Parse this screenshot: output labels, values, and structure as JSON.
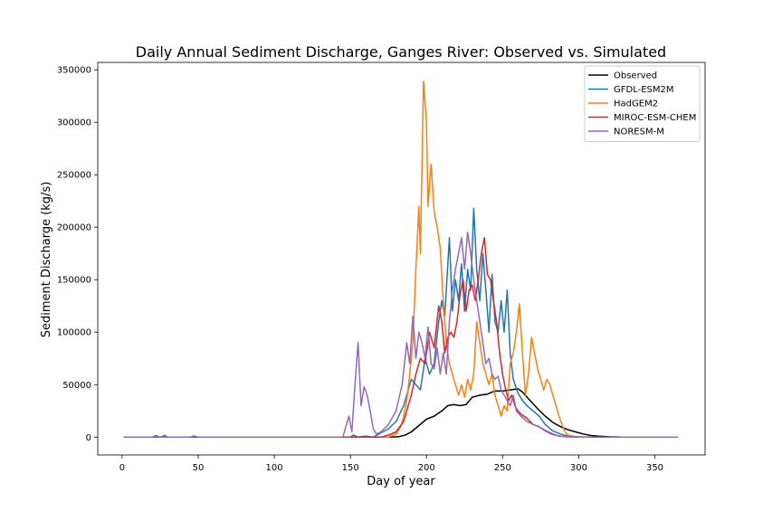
{
  "chart_data": {
    "type": "line",
    "title": "Daily Annual Sediment Discharge, Ganges River: Observed vs. Simulated",
    "xlabel": "Day of year",
    "ylabel": "Sediment Discharge (kg/s)",
    "xlim": [
      -16,
      383
    ],
    "ylim": [
      -17000,
      357000
    ],
    "xticks": [
      0,
      50,
      100,
      150,
      200,
      250,
      300,
      350
    ],
    "yticks": [
      0,
      50000,
      100000,
      150000,
      200000,
      250000,
      300000,
      350000
    ],
    "grid": false,
    "legend_position": "top-right",
    "series": [
      {
        "name": "Observed",
        "color": "#000000",
        "points": [
          [
            1,
            0
          ],
          [
            175,
            0
          ],
          [
            182,
            500
          ],
          [
            186,
            2000
          ],
          [
            190,
            5000
          ],
          [
            195,
            11000
          ],
          [
            200,
            17000
          ],
          [
            205,
            20000
          ],
          [
            210,
            25000
          ],
          [
            214,
            30000
          ],
          [
            218,
            31000
          ],
          [
            222,
            30000
          ],
          [
            226,
            31000
          ],
          [
            230,
            38000
          ],
          [
            235,
            40000
          ],
          [
            240,
            41000
          ],
          [
            245,
            44000
          ],
          [
            250,
            44000
          ],
          [
            255,
            45000
          ],
          [
            260,
            46000
          ],
          [
            263,
            43000
          ],
          [
            268,
            35000
          ],
          [
            273,
            27000
          ],
          [
            278,
            20000
          ],
          [
            283,
            14000
          ],
          [
            288,
            10000
          ],
          [
            293,
            7000
          ],
          [
            298,
            5000
          ],
          [
            303,
            3000
          ],
          [
            308,
            1500
          ],
          [
            313,
            800
          ],
          [
            320,
            300
          ],
          [
            330,
            100
          ],
          [
            365,
            0
          ]
        ]
      },
      {
        "name": "GFDL-ESM2M",
        "color": "#1f77b4",
        "points": [
          [
            1,
            0
          ],
          [
            20,
            0
          ],
          [
            22,
            1500
          ],
          [
            25,
            0
          ],
          [
            28,
            1500
          ],
          [
            30,
            0
          ],
          [
            45,
            0
          ],
          [
            47,
            800
          ],
          [
            50,
            0
          ],
          [
            150,
            0
          ],
          [
            152,
            2000
          ],
          [
            155,
            0
          ],
          [
            160,
            1000
          ],
          [
            165,
            0
          ],
          [
            170,
            4000
          ],
          [
            175,
            8000
          ],
          [
            180,
            15000
          ],
          [
            185,
            30000
          ],
          [
            190,
            55000
          ],
          [
            193,
            50000
          ],
          [
            196,
            45000
          ],
          [
            199,
            75000
          ],
          [
            202,
            60000
          ],
          [
            205,
            70000
          ],
          [
            208,
            110000
          ],
          [
            210,
            130000
          ],
          [
            212,
            115000
          ],
          [
            215,
            190000
          ],
          [
            217,
            120000
          ],
          [
            219,
            150000
          ],
          [
            221,
            130000
          ],
          [
            223,
            165000
          ],
          [
            225,
            120000
          ],
          [
            227,
            160000
          ],
          [
            229,
            140000
          ],
          [
            231,
            218000
          ],
          [
            233,
            160000
          ],
          [
            235,
            130000
          ],
          [
            237,
            175000
          ],
          [
            239,
            140000
          ],
          [
            241,
            100000
          ],
          [
            243,
            155000
          ],
          [
            245,
            110000
          ],
          [
            247,
            100000
          ],
          [
            249,
            130000
          ],
          [
            251,
            100000
          ],
          [
            253,
            140000
          ],
          [
            255,
            80000
          ],
          [
            257,
            55000
          ],
          [
            260,
            42000
          ],
          [
            263,
            35000
          ],
          [
            266,
            30000
          ],
          [
            270,
            25000
          ],
          [
            274,
            20000
          ],
          [
            278,
            12000
          ],
          [
            283,
            6000
          ],
          [
            288,
            3000
          ],
          [
            293,
            1000
          ],
          [
            300,
            200
          ],
          [
            310,
            0
          ],
          [
            365,
            0
          ]
        ]
      },
      {
        "name": "HadGEM2",
        "color": "#ff7f0e",
        "points": [
          [
            1,
            0
          ],
          [
            175,
            0
          ],
          [
            180,
            3000
          ],
          [
            183,
            10000
          ],
          [
            185,
            20000
          ],
          [
            187,
            35000
          ],
          [
            189,
            60000
          ],
          [
            191,
            90000
          ],
          [
            193,
            160000
          ],
          [
            195,
            220000
          ],
          [
            196,
            175000
          ],
          [
            198,
            339000
          ],
          [
            200,
            300000
          ],
          [
            201,
            220000
          ],
          [
            203,
            260000
          ],
          [
            205,
            215000
          ],
          [
            207,
            200000
          ],
          [
            209,
            180000
          ],
          [
            211,
            130000
          ],
          [
            213,
            90000
          ],
          [
            215,
            70000
          ],
          [
            217,
            60000
          ],
          [
            219,
            50000
          ],
          [
            221,
            40000
          ],
          [
            223,
            50000
          ],
          [
            225,
            38000
          ],
          [
            227,
            55000
          ],
          [
            229,
            45000
          ],
          [
            231,
            60000
          ],
          [
            233,
            110000
          ],
          [
            235,
            90000
          ],
          [
            237,
            70000
          ],
          [
            239,
            60000
          ],
          [
            241,
            50000
          ],
          [
            243,
            60000
          ],
          [
            245,
            40000
          ],
          [
            247,
            30000
          ],
          [
            249,
            20000
          ],
          [
            251,
            30000
          ],
          [
            253,
            25000
          ],
          [
            255,
            70000
          ],
          [
            257,
            80000
          ],
          [
            259,
            100000
          ],
          [
            261,
            127000
          ],
          [
            263,
            80000
          ],
          [
            265,
            40000
          ],
          [
            267,
            60000
          ],
          [
            269,
            95000
          ],
          [
            271,
            80000
          ],
          [
            273,
            65000
          ],
          [
            275,
            55000
          ],
          [
            277,
            45000
          ],
          [
            279,
            55000
          ],
          [
            281,
            50000
          ],
          [
            283,
            40000
          ],
          [
            285,
            30000
          ],
          [
            287,
            20000
          ],
          [
            289,
            12000
          ],
          [
            291,
            5000
          ],
          [
            293,
            2000
          ],
          [
            298,
            500
          ],
          [
            305,
            0
          ],
          [
            365,
            0
          ]
        ]
      },
      {
        "name": "MIROC-ESM-CHEM",
        "color": "#d62728",
        "points": [
          [
            1,
            0
          ],
          [
            170,
            0
          ],
          [
            175,
            2000
          ],
          [
            180,
            5000
          ],
          [
            185,
            15000
          ],
          [
            190,
            40000
          ],
          [
            193,
            60000
          ],
          [
            196,
            75000
          ],
          [
            199,
            70000
          ],
          [
            202,
            100000
          ],
          [
            205,
            85000
          ],
          [
            208,
            125000
          ],
          [
            210,
            110000
          ],
          [
            212,
            80000
          ],
          [
            214,
            95000
          ],
          [
            216,
            100000
          ],
          [
            218,
            95000
          ],
          [
            220,
            110000
          ],
          [
            222,
            135000
          ],
          [
            224,
            150000
          ],
          [
            226,
            120000
          ],
          [
            228,
            140000
          ],
          [
            230,
            145000
          ],
          [
            232,
            130000
          ],
          [
            234,
            150000
          ],
          [
            236,
            175000
          ],
          [
            238,
            190000
          ],
          [
            240,
            155000
          ],
          [
            242,
            150000
          ],
          [
            244,
            130000
          ],
          [
            246,
            110000
          ],
          [
            248,
            80000
          ],
          [
            250,
            60000
          ],
          [
            252,
            45000
          ],
          [
            254,
            35000
          ],
          [
            256,
            40000
          ],
          [
            258,
            30000
          ],
          [
            260,
            25000
          ],
          [
            262,
            22000
          ],
          [
            264,
            20000
          ],
          [
            266,
            18000
          ],
          [
            268,
            15000
          ],
          [
            270,
            12000
          ],
          [
            274,
            10000
          ],
          [
            278,
            6000
          ],
          [
            282,
            3000
          ],
          [
            287,
            1000
          ],
          [
            292,
            300
          ],
          [
            300,
            0
          ],
          [
            365,
            0
          ]
        ]
      },
      {
        "name": "NORESM-M",
        "color": "#9467bd",
        "points": [
          [
            1,
            0
          ],
          [
            20,
            0
          ],
          [
            22,
            1000
          ],
          [
            25,
            0
          ],
          [
            45,
            0
          ],
          [
            47,
            1200
          ],
          [
            50,
            0
          ],
          [
            145,
            0
          ],
          [
            147,
            10000
          ],
          [
            149,
            20000
          ],
          [
            151,
            5000
          ],
          [
            153,
            50000
          ],
          [
            155,
            90000
          ],
          [
            157,
            30000
          ],
          [
            159,
            48000
          ],
          [
            161,
            40000
          ],
          [
            163,
            25000
          ],
          [
            165,
            8000
          ],
          [
            167,
            3000
          ],
          [
            170,
            5000
          ],
          [
            175,
            12000
          ],
          [
            180,
            25000
          ],
          [
            184,
            50000
          ],
          [
            187,
            90000
          ],
          [
            189,
            70000
          ],
          [
            191,
            115000
          ],
          [
            193,
            75000
          ],
          [
            195,
            100000
          ],
          [
            197,
            90000
          ],
          [
            199,
            75000
          ],
          [
            201,
            105000
          ],
          [
            203,
            70000
          ],
          [
            205,
            65000
          ],
          [
            207,
            85000
          ],
          [
            209,
            60000
          ],
          [
            211,
            80000
          ],
          [
            213,
            60000
          ],
          [
            215,
            110000
          ],
          [
            217,
            140000
          ],
          [
            219,
            160000
          ],
          [
            221,
            175000
          ],
          [
            223,
            190000
          ],
          [
            225,
            160000
          ],
          [
            227,
            195000
          ],
          [
            229,
            175000
          ],
          [
            231,
            150000
          ],
          [
            233,
            130000
          ],
          [
            235,
            110000
          ],
          [
            237,
            90000
          ],
          [
            239,
            70000
          ],
          [
            241,
            75000
          ],
          [
            243,
            60000
          ],
          [
            245,
            55000
          ],
          [
            247,
            58000
          ],
          [
            249,
            45000
          ],
          [
            251,
            40000
          ],
          [
            253,
            35000
          ],
          [
            255,
            30000
          ],
          [
            257,
            40000
          ],
          [
            259,
            25000
          ],
          [
            262,
            20000
          ],
          [
            266,
            15000
          ],
          [
            270,
            12000
          ],
          [
            275,
            9000
          ],
          [
            280,
            5000
          ],
          [
            285,
            2000
          ],
          [
            290,
            500
          ],
          [
            300,
            0
          ],
          [
            365,
            0
          ]
        ]
      }
    ]
  }
}
